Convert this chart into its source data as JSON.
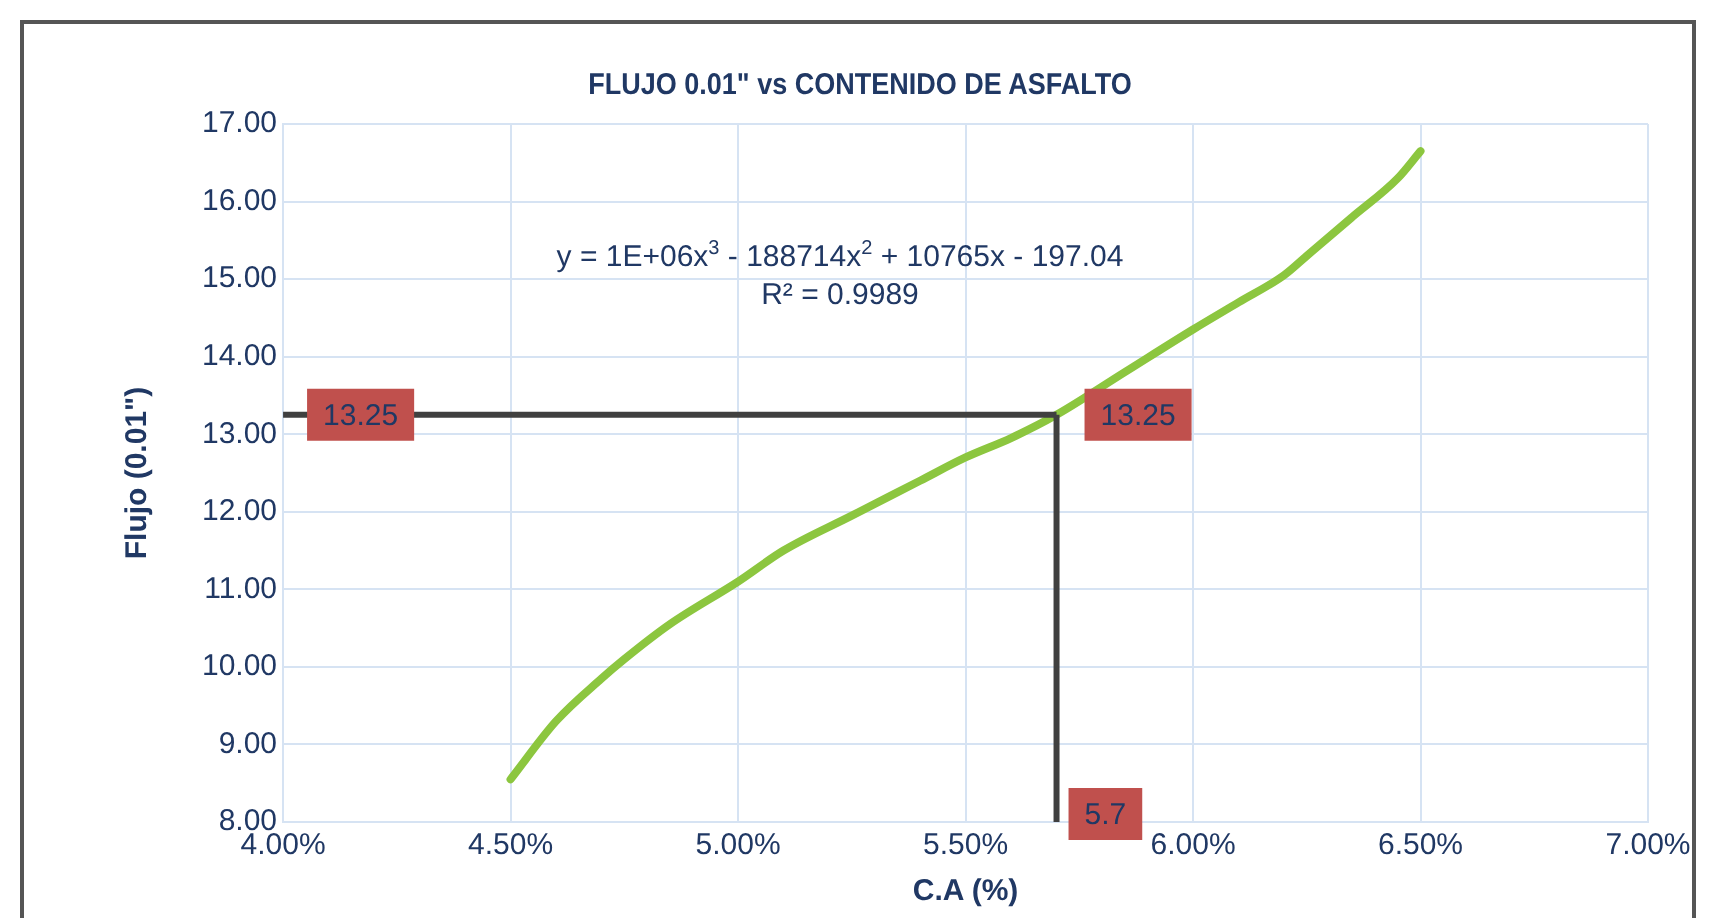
{
  "chart_data": {
    "type": "line",
    "title": "FLUJO 0.01\" vs CONTENIDO DE ASFALTO",
    "xlabel": "C.A (%)",
    "ylabel": "Flujo (0.01\")",
    "x": [
      4.5,
      4.6,
      4.7,
      4.75,
      4.85,
      5.0,
      5.1,
      5.25,
      5.4,
      5.5,
      5.6,
      5.7,
      5.85,
      6.0,
      6.1,
      6.2,
      6.25,
      6.35,
      6.45,
      6.5
    ],
    "series": [
      {
        "color": "#8cc63f",
        "values": [
          8.55,
          9.3,
          9.85,
          10.1,
          10.55,
          11.1,
          11.5,
          11.95,
          12.4,
          12.7,
          12.95,
          13.25,
          13.8,
          14.35,
          14.7,
          15.05,
          15.3,
          15.8,
          16.3,
          16.65
        ]
      }
    ],
    "xlim": [
      4,
      7
    ],
    "xticks": [
      {
        "value": 4,
        "label": "4.00%"
      },
      {
        "value": 4.5,
        "label": "4.50%"
      },
      {
        "value": 5,
        "label": "5.00%"
      },
      {
        "value": 5.5,
        "label": "5.50%"
      },
      {
        "value": 6,
        "label": "6.00%"
      },
      {
        "value": 6.5,
        "label": "6.50%"
      },
      {
        "value": 7,
        "label": "7.00%"
      }
    ],
    "ylim": [
      8,
      17
    ],
    "yticks": [
      {
        "value": 8,
        "label": "8.00"
      },
      {
        "value": 9,
        "label": "9.00"
      },
      {
        "value": 10,
        "label": "10.00"
      },
      {
        "value": 11,
        "label": "11.00"
      },
      {
        "value": 12,
        "label": "12.00"
      },
      {
        "value": 13,
        "label": "13.00"
      },
      {
        "value": 14,
        "label": "14.00"
      },
      {
        "value": 15,
        "label": "15.00"
      },
      {
        "value": 16,
        "label": "16.00"
      },
      {
        "value": 17,
        "label": "17.00"
      }
    ],
    "ref_lines": [
      {
        "axis": "y",
        "value": 13.25,
        "label": "13.25",
        "color": "#404040"
      },
      {
        "axis": "x",
        "value": 5.7,
        "label": "5.7",
        "color": "#404040"
      }
    ],
    "annotations": [
      "y = 1E+06x$^{3}$ - 188714x$^{2}$ + 10765x - 197.04",
      "R² = 0.9989",
      {
        "text": "13.25",
        "x": 5.7,
        "y": 13.25
      }
    ],
    "grid": true,
    "legend": false,
    "marker": "none",
    "line_style": "solid"
  }
}
